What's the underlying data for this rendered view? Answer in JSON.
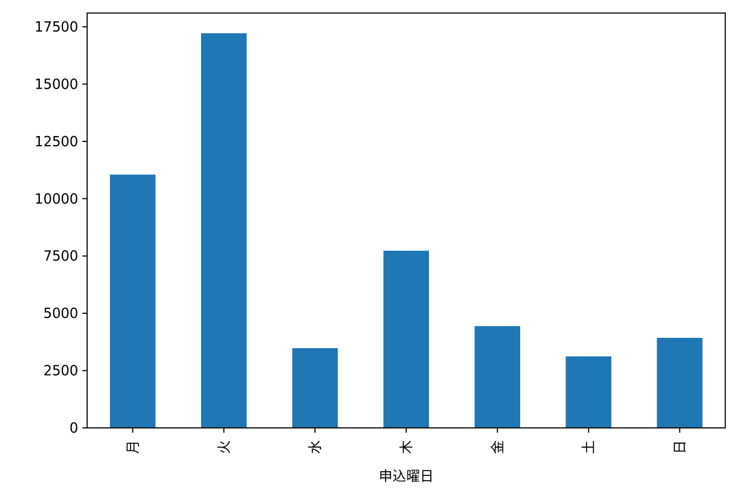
{
  "chart_data": {
    "type": "bar",
    "categories": [
      "月",
      "火",
      "水",
      "木",
      "金",
      "土",
      "日"
    ],
    "values": [
      11050,
      17220,
      3480,
      7730,
      4440,
      3120,
      3930
    ],
    "xlabel": "申込曜日",
    "ylabel": "",
    "ylim": [
      0,
      18100
    ],
    "yticks": [
      0,
      2500,
      5000,
      7500,
      10000,
      12500,
      15000,
      17500
    ],
    "ytick_labels": [
      "0",
      "2500",
      "5000",
      "7500",
      "10000",
      "12500",
      "15000",
      "17500"
    ],
    "grid": false,
    "bar_color": "#1f77b4"
  }
}
